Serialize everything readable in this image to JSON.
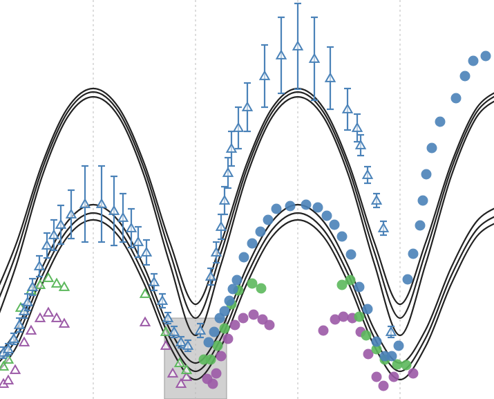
{
  "chart_data": {
    "type": "scatter",
    "xlim": [
      -135,
      580
    ],
    "ylim": [
      0,
      577
    ],
    "xticks": [
      0,
      148,
      296,
      444
    ],
    "grid": true,
    "x": [
      -148,
      -111,
      -74,
      -37,
      0,
      37,
      74,
      111,
      148,
      185,
      222,
      259,
      296,
      333,
      370,
      407,
      444,
      481,
      518,
      555,
      592
    ],
    "lines": [
      {
        "color": "#222222",
        "values": [
          137,
          226,
          340,
          421,
          449,
          421,
          340,
          226,
          137,
          226,
          340,
          421,
          449,
          421,
          340,
          226,
          137,
          226,
          340,
          421,
          449
        ]
      },
      {
        "color": "#222222",
        "values": [
          117,
          212,
          332,
          415,
          444,
          415,
          332,
          212,
          117,
          212,
          332,
          415,
          444,
          415,
          332,
          212,
          117,
          212,
          332,
          415,
          444
        ]
      },
      {
        "color": "#222222",
        "values": [
          92,
          195,
          322,
          408,
          437,
          408,
          322,
          195,
          92,
          195,
          322,
          408,
          437,
          408,
          322,
          195,
          92,
          195,
          322,
          408,
          437
        ]
      },
      {
        "color": "#222222",
        "values": [
          52,
          100,
          190,
          257,
          281,
          257,
          190,
          100,
          52,
          100,
          190,
          257,
          281,
          257,
          190,
          100,
          52,
          100,
          190,
          257,
          281
        ]
      },
      {
        "color": "#222222",
        "values": [
          40,
          88,
          178,
          245,
          269,
          245,
          178,
          88,
          40,
          88,
          178,
          245,
          269,
          245,
          178,
          88,
          40,
          88,
          178,
          245,
          269
        ]
      },
      {
        "color": "#222222",
        "values": [
          28,
          76,
          166,
          235,
          259,
          235,
          166,
          76,
          28,
          76,
          166,
          235,
          259,
          235,
          166,
          76,
          28,
          76,
          166,
          235,
          259
        ]
      }
    ],
    "series": [
      {
        "color": "#9b59a6",
        "marker": "triangle-open",
        "x": [
          -130,
          -123,
          -113,
          -100,
          -90,
          -77,
          -65,
          -53,
          -42,
          75,
          105,
          115,
          127,
          135
        ],
        "values": [
          22,
          27,
          42,
          82,
          99,
          117,
          125,
          117,
          109,
          111,
          77,
          37,
          22,
          32
        ]
      },
      {
        "color": "#9b59a6",
        "marker": "circle",
        "x": [
          165,
          173,
          178,
          185,
          195,
          205,
          217,
          232,
          245,
          255,
          333,
          350,
          362,
          375,
          387,
          398,
          410,
          420,
          435,
          463
        ],
        "values": [
          29,
          22,
          37,
          62,
          87,
          107,
          117,
          122,
          115,
          107,
          99,
          115,
          119,
          117,
          97,
          65,
          32,
          19,
          32,
          37
        ]
      },
      {
        "color": "#5cb85c",
        "marker": "triangle-open",
        "x": [
          -130,
          -123,
          -105,
          -90,
          -77,
          -65,
          -53,
          -42,
          75,
          105,
          125,
          135
        ],
        "values": [
          47,
          57,
          132,
          157,
          165,
          175,
          167,
          162,
          152,
          97,
          52,
          42
        ]
      },
      {
        "color": "#5cb85c",
        "marker": "circle",
        "x": [
          160,
          170,
          180,
          190,
          200,
          210,
          230,
          243,
          360,
          372,
          385,
          395,
          410,
          422,
          440,
          453
        ],
        "values": [
          57,
          57,
          77,
          102,
          137,
          157,
          167,
          160,
          165,
          172,
          119,
          92,
          72,
          57,
          50,
          49
        ]
      },
      {
        "color": "#4a82b8",
        "marker": "triangle-open",
        "x": [
          -130,
          -123,
          -115,
          -107,
          -100,
          -95,
          -88,
          -78,
          -67,
          -57,
          -47,
          -32,
          -12,
          12,
          30,
          43,
          55,
          65,
          77,
          88,
          100,
          108,
          117,
          127,
          137,
          155,
          170,
          178,
          185,
          190,
          195,
          200,
          210,
          223,
          248,
          272,
          296,
          320,
          343,
          368,
          382,
          387,
          397,
          410,
          420,
          431
        ],
        "values": [
          67,
          72,
          87,
          107,
          127,
          140,
          162,
          192,
          222,
          237,
          252,
          267,
          282,
          282,
          272,
          262,
          247,
          227,
          212,
          169,
          142,
          117,
          97,
          82,
          77,
          99,
          177,
          212,
          249,
          287,
          327,
          362,
          392,
          422,
          467,
          497,
          510,
          492,
          464,
          419,
          392,
          367,
          324,
          287,
          247,
          97
        ],
        "errors": [
          8,
          8,
          8,
          10,
          10,
          12,
          12,
          15,
          18,
          22,
          28,
          35,
          55,
          55,
          50,
          35,
          28,
          22,
          18,
          12,
          10,
          8,
          8,
          8,
          8,
          10,
          12,
          15,
          18,
          20,
          22,
          25,
          30,
          35,
          45,
          55,
          62,
          60,
          45,
          30,
          20,
          15,
          12,
          10,
          10,
          8
        ]
      },
      {
        "color": "#4a82b8",
        "marker": "circle",
        "x": [
          167,
          175,
          183,
          190,
          197,
          202,
          208,
          218,
          230,
          242,
          253,
          265,
          285,
          308,
          325,
          338,
          349,
          360,
          373,
          385,
          397,
          410,
          422,
          432,
          442,
          455,
          463,
          473,
          477,
          482,
          490,
          502,
          525,
          538,
          550,
          568
        ],
        "values": [
          82,
          97,
          117,
          127,
          142,
          159,
          172,
          205,
          225,
          242,
          259,
          275,
          279,
          281,
          277,
          265,
          252,
          235,
          209,
          162,
          130,
          83,
          62,
          62,
          77,
          173,
          210,
          251,
          287,
          325,
          363,
          401,
          435,
          467,
          489,
          496
        ]
      }
    ]
  }
}
